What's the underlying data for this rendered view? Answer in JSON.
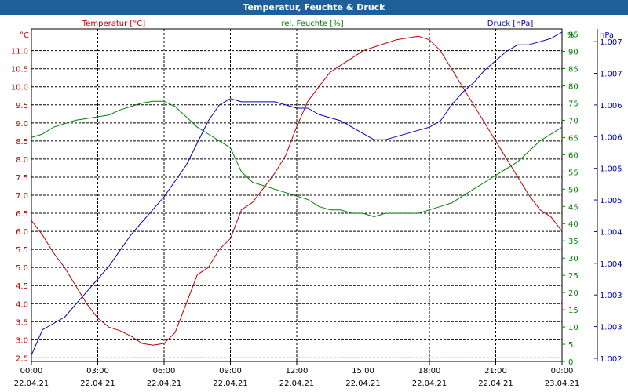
{
  "chart_data": {
    "type": "line",
    "title": "Temperatur, Feuchte & Druck",
    "x_ticks": [
      {
        "time": "00:00",
        "date": "22.04.21"
      },
      {
        "time": "03:00",
        "date": "22.04.21"
      },
      {
        "time": "06:00",
        "date": "22.04.21"
      },
      {
        "time": "09:00",
        "date": "22.04.21"
      },
      {
        "time": "12:00",
        "date": "22.04.21"
      },
      {
        "time": "15:00",
        "date": "22.04.21"
      },
      {
        "time": "18:00",
        "date": "22.04.21"
      },
      {
        "time": "21:00",
        "date": "22.04.21"
      },
      {
        "time": "00:00",
        "date": "23.04.21"
      }
    ],
    "x_range_hours": [
      0,
      24
    ],
    "axes": {
      "temp": {
        "unit": "°C",
        "legend": "Temperatur [°C]",
        "min": 2.4,
        "max": 11.6,
        "color": "#c00000",
        "ticks": [
          "2.5",
          "3.0",
          "3.5",
          "4.0",
          "4.5",
          "5.0",
          "5.5",
          "6.0",
          "6.5",
          "7.0",
          "7.5",
          "8.0",
          "8.5",
          "9.0",
          "9.5",
          "10.0",
          "10.5",
          "11.0"
        ]
      },
      "hum": {
        "unit": "%",
        "legend": "rel. Feuchte [%]",
        "min": 0,
        "max": 96.5,
        "color": "#008000",
        "ticks": [
          "0",
          "5",
          "10",
          "15",
          "20",
          "25",
          "30",
          "35",
          "40",
          "45",
          "50",
          "55",
          "60",
          "65",
          "70",
          "75",
          "80",
          "85",
          "90",
          "95"
        ]
      },
      "press": {
        "unit": "hPa",
        "legend": "Druck [hPa]",
        "min": 1001.95,
        "max": 1007.2,
        "color": "#0000c0",
        "ticks": [
          {
            "label": "1.002",
            "value": 1002.0
          },
          {
            "label": "1.003",
            "value": 1002.5
          },
          {
            "label": "1.003",
            "value": 1003.0
          },
          {
            "label": "1.004",
            "value": 1003.5
          },
          {
            "label": "1.004",
            "value": 1004.0
          },
          {
            "label": "1.005",
            "value": 1004.5
          },
          {
            "label": "1.005",
            "value": 1005.0
          },
          {
            "label": "1.006",
            "value": 1005.5
          },
          {
            "label": "1.006",
            "value": 1006.0
          },
          {
            "label": "1.007",
            "value": 1006.5
          },
          {
            "label": "1.007",
            "value": 1007.0
          }
        ]
      }
    },
    "series": [
      {
        "name": "Temperatur",
        "axis": "temp",
        "color": "#c00000",
        "x": [
          0,
          0.5,
          1,
          1.5,
          2,
          2.5,
          3,
          3.5,
          4,
          4.5,
          5,
          5.5,
          6,
          6.5,
          7,
          7.5,
          8,
          8.5,
          9,
          9.5,
          10,
          10.5,
          11,
          11.5,
          12,
          12.5,
          13,
          13.5,
          14,
          14.5,
          15,
          15.5,
          16,
          16.5,
          17,
          17.5,
          18,
          18.5,
          19,
          19.5,
          20,
          20.5,
          21,
          21.5,
          22,
          22.5,
          23,
          23.5,
          24
        ],
        "values": [
          6.3,
          5.9,
          5.4,
          5.0,
          4.5,
          4.0,
          3.6,
          3.35,
          3.25,
          3.1,
          2.9,
          2.85,
          2.9,
          3.2,
          4.0,
          4.8,
          5.0,
          5.5,
          5.8,
          6.6,
          6.8,
          7.2,
          7.6,
          8.1,
          8.9,
          9.6,
          10.0,
          10.4,
          10.6,
          10.8,
          11.0,
          11.1,
          11.2,
          11.3,
          11.35,
          11.4,
          11.3,
          11.0,
          10.5,
          10.0,
          9.5,
          9.0,
          8.5,
          8.0,
          7.5,
          7.0,
          6.6,
          6.4,
          6.0
        ]
      },
      {
        "name": "rel. Feuchte",
        "axis": "hum",
        "color": "#008000",
        "x": [
          0,
          0.5,
          1,
          1.5,
          2,
          2.5,
          3,
          3.5,
          4,
          4.5,
          5,
          5.5,
          6,
          6.5,
          7,
          7.5,
          8,
          8.5,
          9,
          9.5,
          10,
          10.5,
          11,
          11.5,
          12,
          12.5,
          13,
          13.5,
          14,
          14.5,
          15,
          15.5,
          16,
          16.5,
          17,
          17.5,
          18,
          18.5,
          19,
          19.5,
          20,
          20.5,
          21,
          21.5,
          22,
          22.5,
          23,
          23.5,
          24
        ],
        "values": [
          65,
          66,
          68,
          69,
          70,
          70.5,
          71,
          71.5,
          73,
          74,
          75,
          75.5,
          75.5,
          74,
          71,
          68,
          66,
          64,
          62,
          55,
          52,
          51,
          50,
          49,
          48,
          47,
          45,
          44,
          44,
          43,
          43,
          42,
          43,
          43,
          43,
          43,
          44,
          45,
          46,
          48,
          50,
          52,
          54,
          56,
          58,
          61,
          64,
          66,
          68
        ]
      },
      {
        "name": "Druck",
        "axis": "press",
        "color": "#0000c0",
        "x": [
          0,
          0.5,
          1,
          1.5,
          2,
          2.5,
          3,
          3.5,
          4,
          4.5,
          5,
          5.5,
          6,
          6.5,
          7,
          7.5,
          8,
          8.5,
          9,
          9.5,
          10,
          10.5,
          11,
          11.5,
          12,
          12.5,
          13,
          13.5,
          14,
          14.5,
          15,
          15.5,
          16,
          16.5,
          17,
          17.5,
          18,
          18.5,
          19,
          19.5,
          20,
          20.5,
          21,
          21.5,
          22,
          22.5,
          23,
          23.5,
          24
        ],
        "values": [
          1002.05,
          1002.45,
          1002.55,
          1002.65,
          1002.85,
          1003.05,
          1003.25,
          1003.45,
          1003.7,
          1003.95,
          1004.15,
          1004.35,
          1004.55,
          1004.8,
          1005.05,
          1005.4,
          1005.75,
          1006.0,
          1006.1,
          1006.05,
          1006.05,
          1006.05,
          1006.05,
          1006.0,
          1005.95,
          1005.95,
          1005.85,
          1005.8,
          1005.75,
          1005.65,
          1005.55,
          1005.45,
          1005.45,
          1005.5,
          1005.55,
          1005.6,
          1005.65,
          1005.75,
          1006.0,
          1006.2,
          1006.35,
          1006.55,
          1006.7,
          1006.85,
          1006.95,
          1006.95,
          1007.0,
          1007.05,
          1007.15
        ]
      }
    ]
  }
}
